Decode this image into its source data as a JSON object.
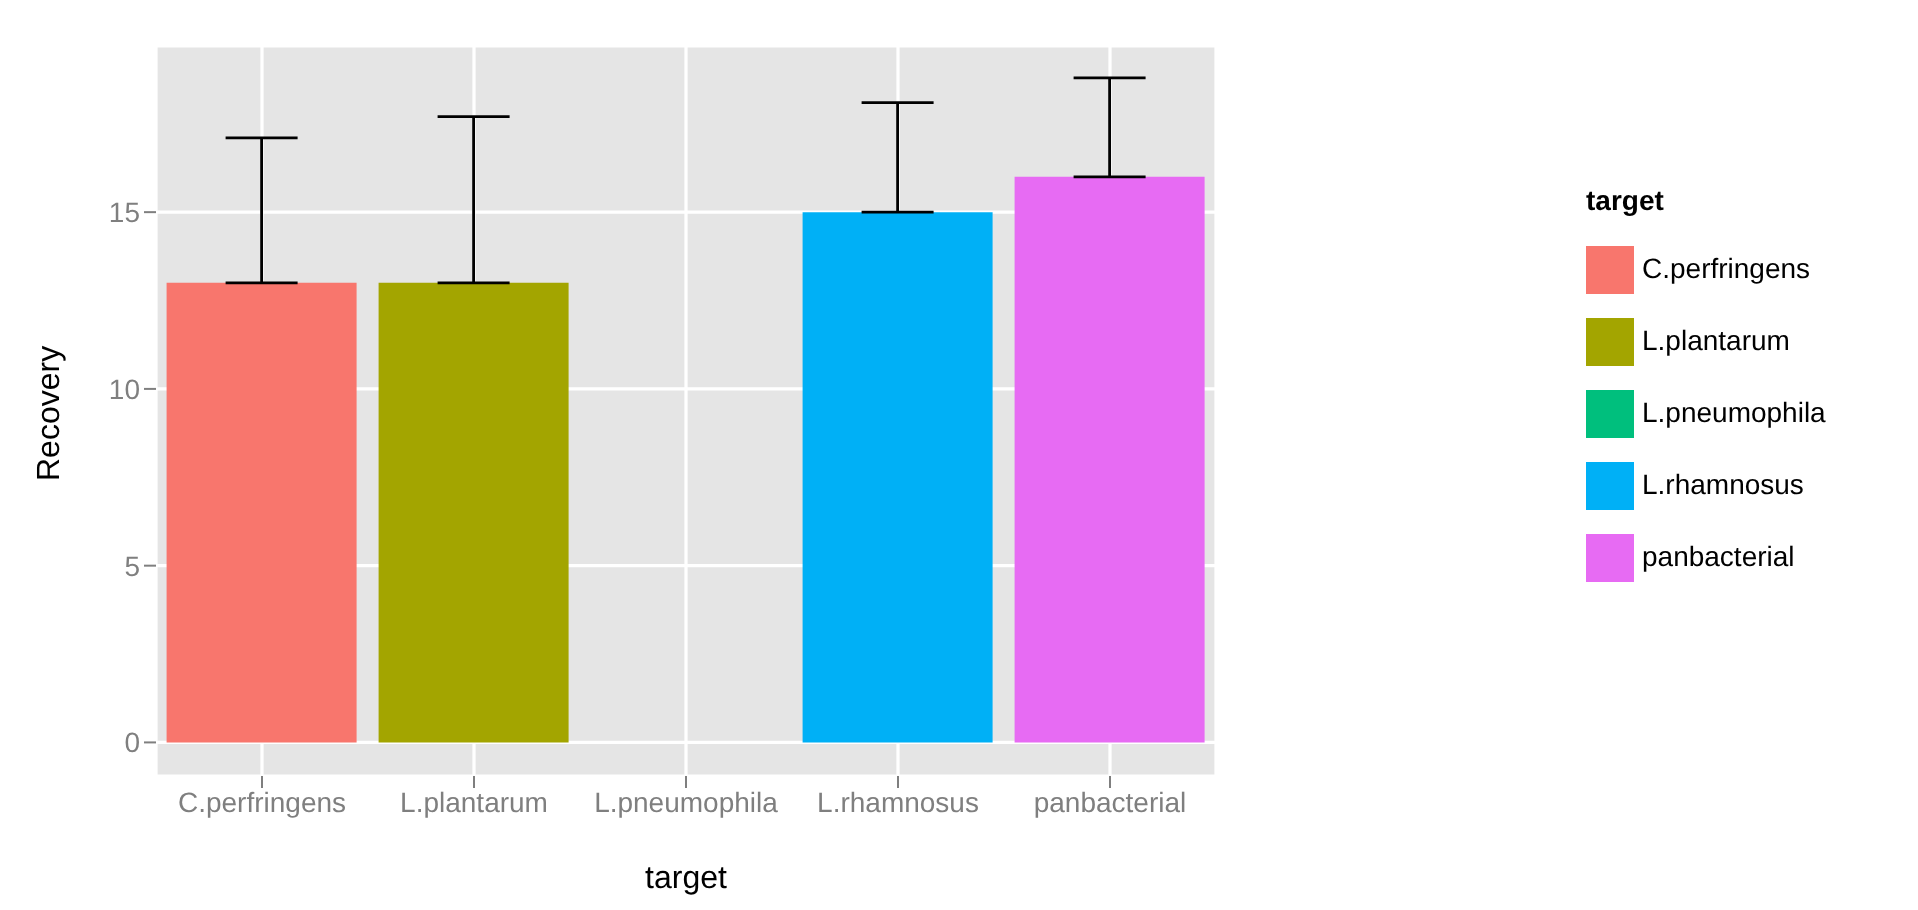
{
  "chart_data": {
    "type": "bar",
    "xlabel": "target",
    "ylabel": "Recovery",
    "legend_title": "target",
    "legend": "right",
    "grid": true,
    "stacked": true,
    "categories": [
      "C.perfringens",
      "L.plantarum",
      "L.pneumophila",
      "L.rhamnosus",
      "panbacterial"
    ],
    "series": [
      {
        "name": "C.perfringens",
        "color": "#f8766d",
        "values": [
          13,
          null,
          null,
          null,
          null
        ],
        "errors": [
          [
            13,
            17.1
          ],
          null,
          null,
          null,
          null
        ]
      },
      {
        "name": "L.plantarum",
        "color": "#a3a500",
        "values": [
          null,
          13,
          null,
          null,
          null
        ],
        "errors": [
          null,
          [
            13,
            17.7
          ],
          null,
          null,
          null
        ]
      },
      {
        "name": "L.pneumophila",
        "color": "#00bf7d",
        "values": [
          null,
          null,
          null,
          null,
          null
        ]
      },
      {
        "name": "L.rhamnosus",
        "color": "#00b0f6",
        "values": [
          null,
          null,
          null,
          15,
          null
        ],
        "errors": [
          null,
          null,
          null,
          [
            15,
            18.1
          ],
          null
        ]
      },
      {
        "name": "panbacterial",
        "color": "#e76bf3",
        "values": [
          null,
          null,
          null,
          null,
          16
        ],
        "errors": [
          null,
          null,
          null,
          null,
          [
            16,
            18.8
          ]
        ]
      }
    ],
    "ylim": [
      -0.95,
      19.7
    ],
    "yticks": [
      0,
      5,
      10,
      15
    ]
  }
}
